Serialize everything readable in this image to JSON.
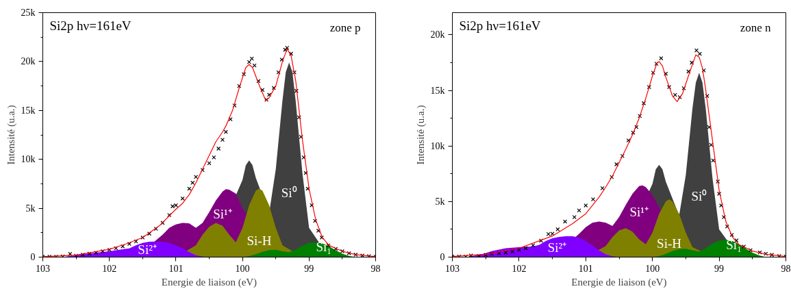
{
  "chart_data": [
    {
      "type": "area",
      "xlabel": "Energie de liaison (eV)",
      "ylabel": "Intensité (u.a.)",
      "xlim": [
        103,
        98
      ],
      "ylim": [
        0,
        25000
      ],
      "grid": false,
      "xticks": [
        103,
        {
          "value": 102.5,
          "label": null
        },
        102,
        {
          "value": 101.5,
          "label": null
        },
        101,
        {
          "value": 100.5,
          "label": null
        },
        100,
        {
          "value": 99.5,
          "label": null
        },
        99,
        {
          "value": 98.5,
          "label": null
        },
        98
      ],
      "yticks": [
        0,
        {
          "value": 2500,
          "label": null
        },
        {
          "value": 5000,
          "label": "5k"
        },
        {
          "value": 7500,
          "label": null
        },
        {
          "value": 10000,
          "label": "10k"
        },
        {
          "value": 12500,
          "label": null
        },
        {
          "value": 15000,
          "label": "15k"
        },
        {
          "value": 17500,
          "label": null
        },
        {
          "value": 20000,
          "label": "20k"
        },
        {
          "value": 22500,
          "label": null
        },
        {
          "value": 25000,
          "label": "25k"
        }
      ],
      "annotations": [
        "Si2p hν=161eV",
        "zone p"
      ],
      "series": [
        {
          "name": "Si⁰",
          "color": "#404040",
          "x": [
            100.5,
            100.0,
            99.95,
            99.9,
            99.85,
            99.8,
            99.6,
            99.5,
            99.4,
            99.35,
            99.3,
            99.25,
            99.2,
            99.1,
            99.0,
            98.7
          ],
          "values": [
            0,
            7900,
            9400,
            9900,
            9400,
            8100,
            4500,
            9000,
            16000,
            18900,
            19900,
            18900,
            15900,
            8600,
            3000,
            0
          ]
        },
        {
          "name": "Si¹⁺",
          "color": "#800080",
          "x": [
            101.6,
            101.2,
            101.1,
            101.0,
            100.9,
            100.8,
            100.7,
            100.6,
            100.5,
            100.4,
            100.3,
            100.25,
            100.2,
            100.1,
            100.0,
            99.5
          ],
          "values": [
            0,
            2300,
            3000,
            3350,
            3500,
            3450,
            3000,
            3500,
            4600,
            5800,
            6700,
            6950,
            6900,
            6500,
            5000,
            0
          ]
        },
        {
          "name": "Si-H",
          "color": "#808000",
          "x": [
            101.0,
            100.7,
            100.6,
            100.5,
            100.4,
            100.3,
            100.2,
            100.1,
            100.0,
            99.9,
            99.8,
            99.75,
            99.7,
            99.6,
            99.5,
            99.4,
            99.1
          ],
          "values": [
            0,
            1200,
            2300,
            3100,
            3500,
            3200,
            2300,
            1500,
            3000,
            5300,
            6800,
            7000,
            6800,
            5300,
            3000,
            1200,
            0
          ]
        },
        {
          "name": "Si²⁺",
          "color": "#8000ff",
          "x": [
            102.7,
            102.6,
            102.5,
            102.4,
            102.2,
            102.0,
            101.8,
            101.7,
            101.6,
            101.5,
            101.4,
            101.3,
            101.2,
            101.1,
            101.0,
            100.9,
            100.8,
            100.7,
            100.6,
            100.5
          ],
          "values": [
            0,
            100,
            200,
            300,
            450,
            600,
            800,
            900,
            1200,
            1450,
            1570,
            1600,
            1580,
            1450,
            1200,
            900,
            500,
            200,
            50,
            0
          ]
        },
        {
          "name": "Si₁",
          "color": "#008000",
          "x": [
            100.0,
            99.9,
            99.8,
            99.7,
            99.6,
            99.5,
            99.4,
            99.3,
            99.2,
            99.1,
            99.0,
            98.9,
            98.8,
            98.7,
            98.6,
            98.5,
            98.4,
            98.3
          ],
          "values": [
            0,
            100,
            300,
            550,
            720,
            750,
            600,
            500,
            750,
            1150,
            1450,
            1500,
            1400,
            1100,
            700,
            350,
            120,
            0
          ]
        },
        {
          "type": "scatter",
          "marker": "cross",
          "color": "#000000",
          "x": [
            103.0,
            102.9,
            102.8,
            102.7,
            102.59,
            102.5,
            102.4,
            102.3,
            102.2,
            102.1,
            102.0,
            101.9,
            101.8,
            101.7,
            101.6,
            101.5,
            101.4,
            101.3,
            101.2,
            101.1,
            101.05,
            101.0,
            100.9,
            100.8,
            100.75,
            100.7,
            100.6,
            100.5,
            100.43,
            100.36,
            100.3,
            100.25,
            100.18,
            100.12,
            100.05,
            99.98,
            99.9,
            99.86,
            99.82,
            99.76,
            99.7,
            99.64,
            99.6,
            99.53,
            99.46,
            99.41,
            99.36,
            99.33,
            99.27,
            99.22,
            99.19,
            99.15,
            99.12,
            99.08,
            99.05,
            99.02,
            98.96,
            98.91,
            98.86,
            98.81,
            98.71,
            98.6,
            98.5,
            98.4,
            98.3,
            98.2,
            98.1,
            98.0
          ],
          "values": [
            50,
            50,
            50,
            70,
            330,
            150,
            250,
            350,
            450,
            600,
            750,
            900,
            1100,
            1350,
            1600,
            2000,
            2400,
            2900,
            3500,
            4300,
            5200,
            5300,
            6000,
            7000,
            7600,
            8200,
            8900,
            9600,
            10200,
            11100,
            12000,
            12800,
            14100,
            15500,
            17500,
            18700,
            19950,
            20300,
            19600,
            18000,
            17100,
            16100,
            16600,
            17300,
            18900,
            20200,
            21200,
            21400,
            20800,
            18900,
            17000,
            14300,
            12300,
            10200,
            8600,
            7000,
            5300,
            3700,
            2700,
            2000,
            1200,
            850,
            600,
            400,
            250,
            160,
            100,
            50
          ]
        },
        {
          "type": "line",
          "color": "#ff0000",
          "x": [
            103.0,
            102.5,
            102.0,
            101.75,
            101.5,
            101.25,
            101.0,
            100.9,
            100.8,
            100.7,
            100.6,
            100.5,
            100.4,
            100.3,
            100.25,
            100.15,
            100.05,
            99.95,
            99.9,
            99.85,
            99.75,
            99.65,
            99.6,
            99.5,
            99.4,
            99.33,
            99.27,
            99.2,
            99.1,
            99.0,
            98.9,
            98.8,
            98.7,
            98.5,
            98.3,
            98.0
          ],
          "values": [
            50,
            200,
            800,
            1350,
            2000,
            3200,
            4900,
            5500,
            6400,
            7600,
            9000,
            10400,
            11800,
            12800,
            13400,
            15000,
            17300,
            19400,
            19700,
            19400,
            17600,
            16000,
            16300,
            17500,
            20000,
            21300,
            20600,
            18000,
            12000,
            7000,
            3800,
            2000,
            1200,
            600,
            250,
            50
          ]
        }
      ]
    },
    {
      "type": "area",
      "xlabel": "Energie de liaison (eV)",
      "ylabel": "Intensité (u.a.)",
      "xlim": [
        103,
        98
      ],
      "ylim": [
        0,
        22000
      ],
      "grid": false,
      "xticks": [
        103,
        {
          "value": 102.5,
          "label": null
        },
        102,
        {
          "value": 101.5,
          "label": null
        },
        101,
        {
          "value": 100.5,
          "label": null
        },
        100,
        {
          "value": 99.5,
          "label": null
        },
        99,
        {
          "value": 98.5,
          "label": null
        },
        98
      ],
      "yticks": [
        0,
        {
          "value": 2500,
          "label": null
        },
        {
          "value": 5000,
          "label": "5k"
        },
        {
          "value": 7500,
          "label": null
        },
        {
          "value": 10000,
          "label": "10k"
        },
        {
          "value": 12500,
          "label": null
        },
        {
          "value": 15000,
          "label": "15k"
        },
        {
          "value": 17500,
          "label": null
        },
        {
          "value": 20000,
          "label": "20k"
        }
      ],
      "annotations": [
        "Si2p hν=161eV",
        "zone n"
      ],
      "series": [
        {
          "name": "Si⁰",
          "color": "#404040",
          "x": [
            100.5,
            100.0,
            99.95,
            99.9,
            99.85,
            99.8,
            99.6,
            99.5,
            99.4,
            99.35,
            99.3,
            99.25,
            99.2,
            99.1,
            99.0,
            98.7
          ],
          "values": [
            0,
            6600,
            7900,
            8300,
            7900,
            6800,
            3750,
            7400,
            13400,
            15700,
            16600,
            15700,
            13300,
            7100,
            2500,
            0
          ]
        },
        {
          "name": "Si¹⁺",
          "color": "#800080",
          "x": [
            101.5,
            101.1,
            101.0,
            100.9,
            100.8,
            100.7,
            100.6,
            100.5,
            100.4,
            100.3,
            100.2,
            100.15,
            100.1,
            100.0,
            99.5
          ],
          "values": [
            0,
            2100,
            2700,
            3100,
            3200,
            3100,
            2800,
            3600,
            4700,
            5700,
            6400,
            6450,
            6300,
            5600,
            0
          ]
        },
        {
          "name": "Si-H",
          "color": "#808000",
          "x": [
            101.0,
            100.7,
            100.6,
            100.5,
            100.4,
            100.3,
            100.2,
            100.1,
            100.0,
            99.9,
            99.8,
            99.75,
            99.7,
            99.6,
            99.5,
            99.4,
            99.1
          ],
          "values": [
            0,
            1000,
            1800,
            2400,
            2600,
            2300,
            1600,
            1150,
            2200,
            3900,
            5000,
            5200,
            5000,
            3900,
            2200,
            900,
            0
          ]
        },
        {
          "name": "Si²⁺",
          "color": "#8000ff",
          "x": [
            102.8,
            102.7,
            102.6,
            102.5,
            102.4,
            102.2,
            102.0,
            101.8,
            101.7,
            101.6,
            101.5,
            101.4,
            101.3,
            101.2,
            101.1,
            101.0,
            100.9,
            100.8,
            100.7,
            100.6,
            100.5
          ],
          "values": [
            0,
            100,
            200,
            350,
            550,
            800,
            900,
            950,
            1100,
            1450,
            1700,
            1820,
            1880,
            1880,
            1750,
            1450,
            1050,
            600,
            250,
            70,
            0
          ]
        },
        {
          "name": "Si₁",
          "color": "#008000",
          "x": [
            100.0,
            99.9,
            99.8,
            99.7,
            99.6,
            99.5,
            99.4,
            99.3,
            99.2,
            99.1,
            99.0,
            98.9,
            98.8,
            98.7,
            98.6,
            98.5,
            98.4,
            98.3
          ],
          "values": [
            0,
            100,
            300,
            550,
            720,
            750,
            620,
            500,
            800,
            1200,
            1500,
            1550,
            1450,
            1150,
            750,
            400,
            150,
            0
          ]
        },
        {
          "type": "scatter",
          "marker": "cross",
          "color": "#000000",
          "x": [
            103.0,
            102.9,
            102.8,
            102.72,
            102.6,
            102.5,
            102.41,
            102.3,
            102.2,
            102.1,
            102.0,
            101.9,
            101.79,
            101.67,
            101.56,
            101.5,
            101.42,
            101.31,
            101.17,
            101.1,
            101.0,
            100.89,
            100.75,
            100.61,
            100.54,
            100.45,
            100.36,
            100.29,
            100.24,
            100.19,
            100.13,
            100.05,
            99.99,
            99.94,
            99.87,
            99.8,
            99.75,
            99.66,
            99.59,
            99.53,
            99.46,
            99.41,
            99.34,
            99.29,
            99.23,
            99.18,
            99.15,
            99.12,
            99.09,
            99.02,
            99.0,
            98.97,
            98.93,
            98.88,
            98.81,
            98.74,
            98.63,
            98.53,
            98.39,
            98.3,
            98.21,
            98.1,
            98.0
          ],
          "values": [
            50,
            50,
            50,
            150,
            100,
            200,
            300,
            350,
            400,
            500,
            650,
            800,
            1060,
            1480,
            2070,
            2100,
            2500,
            3200,
            3600,
            4200,
            4650,
            5200,
            6200,
            7200,
            8350,
            9100,
            10500,
            11200,
            11700,
            12700,
            13850,
            15300,
            16600,
            17400,
            17900,
            16500,
            15300,
            14600,
            14400,
            15200,
            16700,
            17500,
            18600,
            18300,
            16800,
            14500,
            11700,
            10100,
            8700,
            6800,
            5700,
            4650,
            3600,
            2750,
            2000,
            1500,
            950,
            630,
            420,
            300,
            200,
            100,
            50
          ]
        },
        {
          "type": "line",
          "color": "#ff0000",
          "x": [
            103.0,
            102.5,
            102.0,
            101.5,
            101.2,
            101.0,
            100.8,
            100.7,
            100.6,
            100.5,
            100.4,
            100.3,
            100.2,
            100.1,
            100.0,
            99.93,
            99.9,
            99.85,
            99.8,
            99.7,
            99.63,
            99.55,
            99.45,
            99.35,
            99.3,
            99.25,
            99.2,
            99.1,
            99.0,
            98.9,
            98.8,
            98.7,
            98.5,
            98.3,
            98.0
          ],
          "values": [
            50,
            250,
            800,
            1900,
            3000,
            3900,
            5400,
            6300,
            7300,
            8500,
            9700,
            11000,
            12500,
            14300,
            16300,
            17500,
            17600,
            17200,
            16200,
            14500,
            14000,
            14700,
            16500,
            18200,
            18000,
            17000,
            15000,
            10500,
            6000,
            3200,
            1800,
            1100,
            550,
            250,
            50
          ]
        }
      ]
    }
  ]
}
